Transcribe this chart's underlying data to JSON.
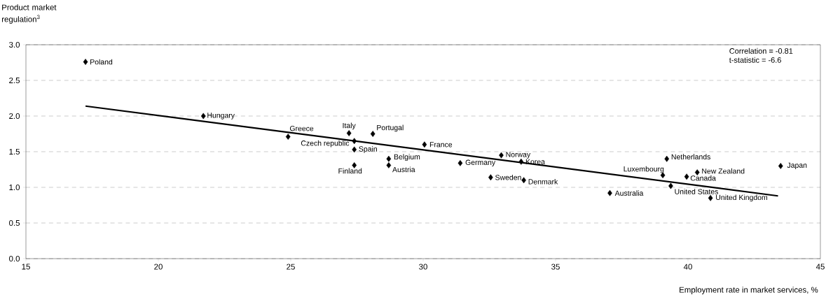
{
  "chart_data": {
    "type": "scatter",
    "ylabel": "Product market regulation$^{3}$",
    "xlabel": "Employment rate in market services, %",
    "xlim": [
      15,
      45
    ],
    "xticks": [
      15,
      20,
      25,
      30,
      35,
      40,
      45
    ],
    "ylim": [
      0,
      3
    ],
    "yticks": [
      {
        "value": 0,
        "label": "0.0"
      },
      {
        "value": 0.5,
        "label": "0.5"
      },
      {
        "value": 1,
        "label": "1.0"
      },
      {
        "value": 1.5,
        "label": "1.5"
      },
      {
        "value": 2,
        "label": "2.0"
      },
      {
        "value": 2.5,
        "label": "2.5"
      },
      {
        "value": 3,
        "label": "3.0"
      }
    ],
    "grid": "y",
    "series": [
      {
        "marker": "diamond",
        "color": "#000000",
        "x": [
          17.25,
          21.7,
          24.9,
          27.4,
          27.2,
          28.1,
          27.4,
          27.4,
          28.7,
          28.7,
          30.05,
          31.4,
          32.95,
          33.7,
          32.55,
          33.8,
          39.2,
          39.05,
          39.95,
          40.35,
          39.35,
          37.05,
          40.85,
          43.5
        ],
        "values": [
          2.76,
          2.0,
          1.71,
          1.65,
          1.76,
          1.75,
          1.53,
          1.31,
          1.4,
          1.31,
          1.6,
          1.34,
          1.45,
          1.36,
          1.14,
          1.1,
          1.4,
          1.17,
          1.15,
          1.21,
          1.02,
          0.92,
          0.85,
          1.3
        ]
      },
      {
        "type": "line",
        "color": "#000000",
        "x": [
          17.25,
          43.4
        ],
        "values": [
          2.14,
          0.88
        ]
      }
    ],
    "annotations": [
      {
        "text": "Poland",
        "x": 17.25,
        "y": 2.76
      },
      {
        "text": "Hungary",
        "x": 21.7,
        "y": 2.0
      },
      {
        "text": "Greece",
        "x": 24.9,
        "y": 1.71
      },
      {
        "text": "Czech republic",
        "x": 27.4,
        "y": 1.65
      },
      {
        "text": "Italy",
        "x": 27.2,
        "y": 1.76
      },
      {
        "text": "Portugal",
        "x": 28.1,
        "y": 1.75
      },
      {
        "text": "Spain",
        "x": 27.4,
        "y": 1.53
      },
      {
        "text": "Finland",
        "x": 27.4,
        "y": 1.31
      },
      {
        "text": "Belgium",
        "x": 28.7,
        "y": 1.4
      },
      {
        "text": "Austria",
        "x": 28.7,
        "y": 1.31
      },
      {
        "text": "France",
        "x": 30.05,
        "y": 1.6
      },
      {
        "text": "Germany",
        "x": 31.4,
        "y": 1.34
      },
      {
        "text": "Norway",
        "x": 32.95,
        "y": 1.45
      },
      {
        "text": "Korea",
        "x": 33.7,
        "y": 1.36
      },
      {
        "text": "Sweden",
        "x": 32.55,
        "y": 1.14
      },
      {
        "text": "Denmark",
        "x": 33.8,
        "y": 1.1
      },
      {
        "text": "Netherlands",
        "x": 39.2,
        "y": 1.4
      },
      {
        "text": "Luxembourg",
        "x": 39.05,
        "y": 1.17
      },
      {
        "text": "Canada",
        "x": 39.95,
        "y": 1.15
      },
      {
        "text": "New Zealand",
        "x": 40.35,
        "y": 1.21
      },
      {
        "text": "United States",
        "x": 39.35,
        "y": 1.02
      },
      {
        "text": "Australia",
        "x": 37.05,
        "y": 0.92
      },
      {
        "text": "United Kingdom",
        "x": 40.85,
        "y": 0.85
      },
      {
        "text": "Japan",
        "x": 43.5,
        "y": 1.3
      },
      "Correlation = -0.81",
      "t-statistic = -6.6"
    ]
  }
}
